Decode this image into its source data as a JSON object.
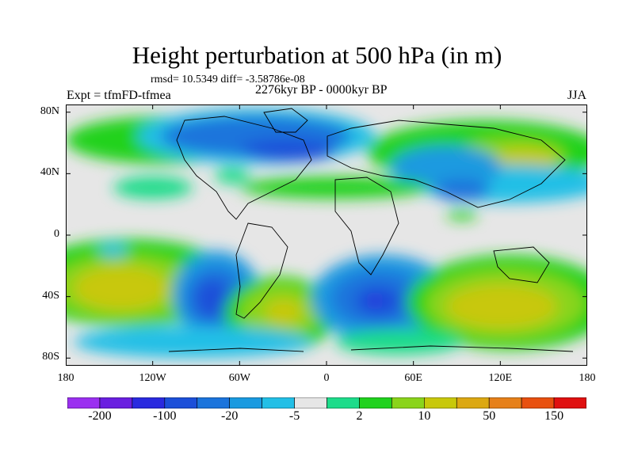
{
  "title": "Height perturbation at 500 hPa (in m)",
  "stats": "rmsd= 10.5349 diff= -3.58786e-08",
  "experiment": "Expt = tfmFD-tfmea",
  "period": "2276kyr BP - 0000kyr BP",
  "season": "JJA",
  "axes": {
    "lat_labels": [
      "80N",
      "40N",
      "0",
      "40S",
      "80S"
    ],
    "lat_values": [
      80,
      40,
      0,
      -40,
      -80
    ],
    "lon_labels": [
      "180",
      "120W",
      "60W",
      "0",
      "60E",
      "120E",
      "180"
    ],
    "lon_values": [
      -180,
      -120,
      -60,
      0,
      60,
      120,
      180
    ]
  },
  "colorbar": {
    "colors": [
      "#9b30f0",
      "#6a1fe0",
      "#2a2adf",
      "#1c4fd9",
      "#1b74dc",
      "#1a9ae0",
      "#22bfe6",
      "#e6e6e6",
      "#1ddc8a",
      "#20d21e",
      "#8ad41b",
      "#c8c80a",
      "#dca812",
      "#e6801a",
      "#e8500f",
      "#e01010"
    ],
    "labels": [
      "-200",
      "-100",
      "-20",
      "-5",
      "2",
      "10",
      "50",
      "150"
    ]
  }
}
